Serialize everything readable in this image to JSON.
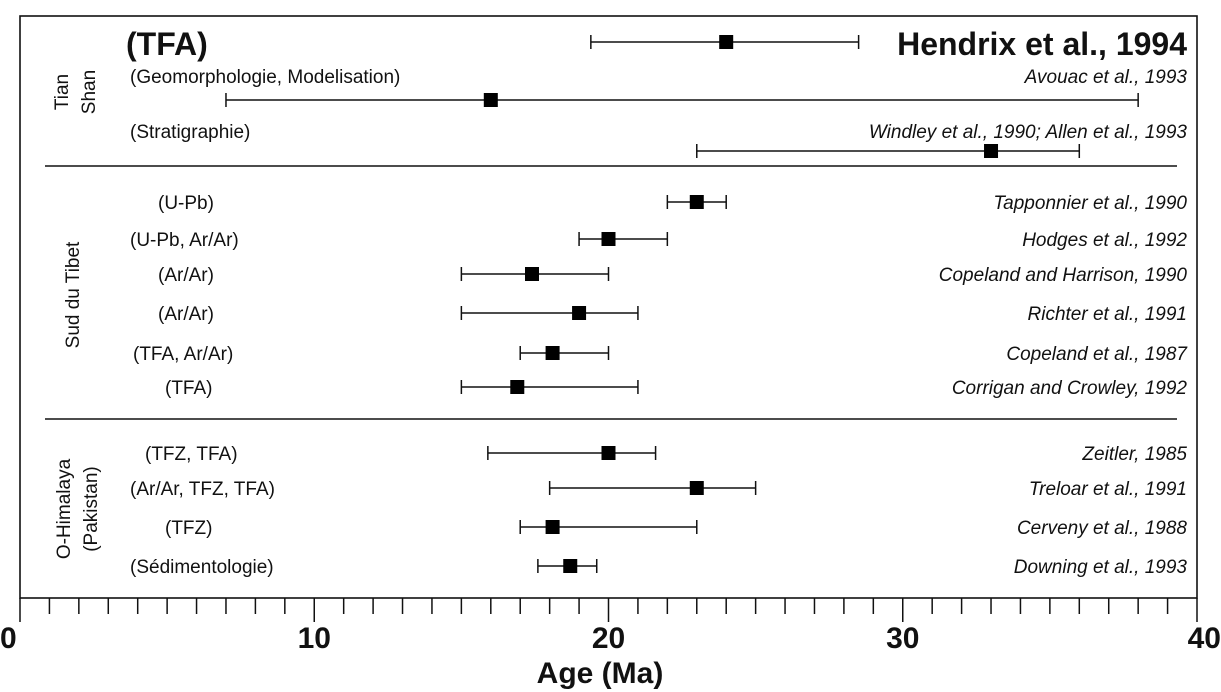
{
  "chart_data": {
    "type": "scatter",
    "xlabel": "Age (Ma)",
    "xlim": [
      0,
      40
    ],
    "x_major_ticks": [
      0,
      10,
      20,
      30,
      40
    ],
    "x_minor_step": 1,
    "groups": [
      {
        "name": "Tian Shan",
        "name_lines": [
          "Tian",
          "Shan"
        ],
        "rows": [
          {
            "method": "(TFA)",
            "reference": "Hendrix et al., 1994",
            "value": 24,
            "min": 19.4,
            "max": 28.5,
            "style": "bold"
          },
          {
            "method": "(Geomorphologie, Modelisation)",
            "reference": "Avouac et al., 1993",
            "value": 16,
            "min": 7,
            "max": 38
          },
          {
            "method": "(Stratigraphie)",
            "reference": "Windley et al., 1990; Allen et al., 1993",
            "value": 33,
            "min": 23,
            "max": 36
          }
        ]
      },
      {
        "name": "Sud du Tibet",
        "name_lines": [
          "Sud du Tibet"
        ],
        "rows": [
          {
            "method": "(U-Pb)",
            "reference": "Tapponnier et al., 1990",
            "value": 23,
            "min": 22,
            "max": 24
          },
          {
            "method": "(U-Pb, Ar/Ar)",
            "reference": "Hodges et al., 1992",
            "value": 20,
            "min": 19,
            "max": 22
          },
          {
            "method": "(Ar/Ar)",
            "reference": "Copeland and Harrison, 1990",
            "value": 17.4,
            "min": 15,
            "max": 20
          },
          {
            "method": "(Ar/Ar)",
            "reference": "Richter et al., 1991",
            "value": 19,
            "min": 15,
            "max": 21
          },
          {
            "method": "(TFA, Ar/Ar)",
            "reference": "Copeland et al., 1987",
            "value": 18.1,
            "min": 17,
            "max": 20
          },
          {
            "method": "(TFA)",
            "reference": "Corrigan and Crowley, 1992",
            "value": 16.9,
            "min": 15,
            "max": 21
          }
        ]
      },
      {
        "name": "O-Himalaya (Pakistan)",
        "name_lines": [
          "O-Himalaya",
          "(Pakistan)"
        ],
        "rows": [
          {
            "method": "(TFZ, TFA)",
            "reference": "Zeitler, 1985",
            "value": 20,
            "min": 15.9,
            "max": 21.6
          },
          {
            "method": "(Ar/Ar, TFZ, TFA)",
            "reference": "Treloar et al., 1991",
            "value": 23,
            "min": 18,
            "max": 25
          },
          {
            "method": "(TFZ)",
            "reference": "Cerveny et al., 1988",
            "value": 18.1,
            "min": 17,
            "max": 23
          },
          {
            "method": "(Sédimentologie)",
            "reference": "Downing et al., 1993",
            "value": 18.7,
            "min": 17.6,
            "max": 19.6
          }
        ]
      }
    ]
  }
}
